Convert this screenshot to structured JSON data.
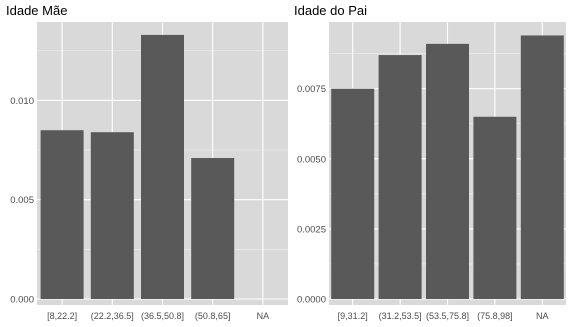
{
  "colors": {
    "panel_bg": "#d9d9d9",
    "gridline": "#f2f2f2",
    "bar": "#595959",
    "tick_text": "#4d4d4d",
    "title_text": "#000000"
  },
  "chart_data": [
    {
      "type": "bar",
      "title": "Idade Mãe",
      "categories": [
        "[8,22.2]",
        "(22.2,36.5]",
        "(36.5,50.8]",
        "(50.8,65]",
        "NA"
      ],
      "values": [
        0.0085,
        0.0084,
        0.0133,
        0.0071,
        0
      ],
      "yticks": [
        0,
        0.005,
        0.01
      ],
      "ytick_labels": [
        "0.000",
        "0.005",
        "0.010"
      ],
      "ylim": [
        0,
        0.01395
      ],
      "grid": true
    },
    {
      "type": "bar",
      "title": "Idade do Pai",
      "categories": [
        "[9,31.2]",
        "(31.2,53.5]",
        "(53.5,75.8]",
        "(75.8,98]",
        "NA"
      ],
      "values": [
        0.0075,
        0.0087,
        0.0091,
        0.0065,
        0.0094
      ],
      "yticks": [
        0,
        0.0025,
        0.005,
        0.0075
      ],
      "ytick_labels": [
        "0.0000",
        "0.0025",
        "0.0050",
        "0.0075"
      ],
      "ylim": [
        0,
        0.00988
      ],
      "grid": true
    }
  ]
}
